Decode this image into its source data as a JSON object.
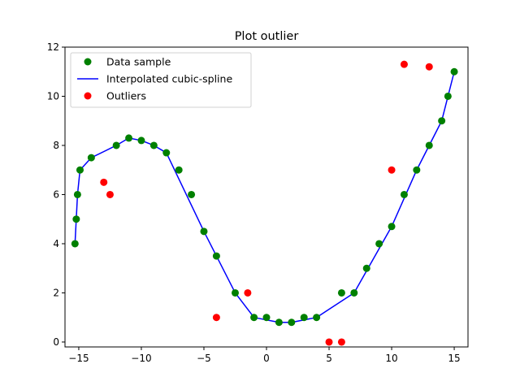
{
  "chart_data": {
    "type": "scatter",
    "title": "Plot outlier",
    "xlabel": "",
    "ylabel": "",
    "xlim": [
      -16.1,
      16.1
    ],
    "ylim": [
      -0.2,
      12
    ],
    "xticks": [
      -15,
      -10,
      -5,
      0,
      5,
      10,
      15
    ],
    "yticks": [
      0,
      2,
      4,
      6,
      8,
      10,
      12
    ],
    "grid": false,
    "legend_position": "top-left",
    "series": [
      {
        "name": "Data sample",
        "kind": "points",
        "color": "#008000",
        "x": [
          -15.3,
          -15.2,
          -15.1,
          -14.9,
          -14,
          -12,
          -11,
          -10,
          -9,
          -8,
          -7,
          -6,
          -5,
          -4,
          -2.5,
          -1,
          0,
          1,
          2,
          3,
          4,
          6,
          7,
          8,
          9,
          10,
          11,
          12,
          13,
          14,
          14.5,
          15
        ],
        "y": [
          4,
          5,
          6,
          7,
          7.5,
          8,
          8.3,
          8.2,
          8,
          7.7,
          7,
          6,
          4.5,
          3.5,
          2,
          1,
          1,
          0.8,
          0.8,
          1,
          1,
          2,
          2,
          3,
          4,
          4.7,
          6,
          7,
          8,
          9,
          10,
          11
        ]
      },
      {
        "name": "Interpolated cubic-spline",
        "kind": "line",
        "color": "#0000ff",
        "x": [
          -15.3,
          -15.2,
          -15.1,
          -14.9,
          -14,
          -12,
          -11,
          -10,
          -9,
          -8,
          -5,
          -4,
          -2.5,
          -1,
          1,
          2,
          4,
          7,
          10,
          12,
          14,
          15
        ],
        "y": [
          4,
          5,
          6,
          7,
          7.5,
          8,
          8.3,
          8.2,
          8,
          7.7,
          4.5,
          3.5,
          2,
          1,
          0.8,
          0.8,
          1,
          2,
          4.7,
          7,
          9,
          11
        ]
      },
      {
        "name": "Outliers",
        "kind": "points",
        "color": "#ff0000",
        "x": [
          -13,
          -12.5,
          -4,
          -1.5,
          5,
          6,
          10,
          11,
          13
        ],
        "y": [
          6.5,
          6,
          1,
          2,
          0,
          0,
          7,
          11.3,
          11.2
        ]
      }
    ]
  }
}
